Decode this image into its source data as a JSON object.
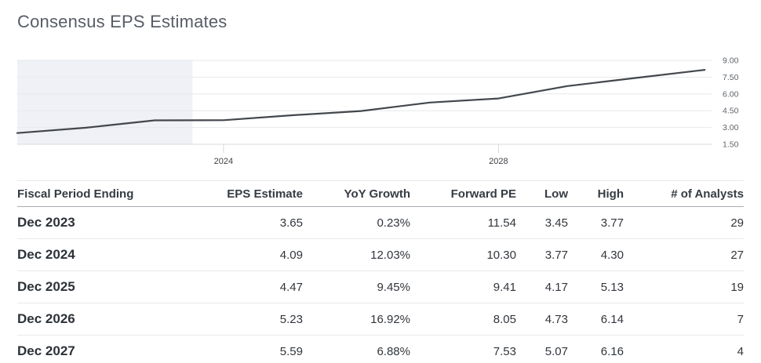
{
  "page": {
    "title": "Consensus EPS Estimates"
  },
  "chart_data": {
    "type": "line",
    "title": "Consensus EPS Estimates",
    "x": [
      2021,
      2022,
      2023,
      2024,
      2025,
      2026,
      2027,
      2028,
      2029,
      2030,
      2031
    ],
    "values": [
      2.5,
      2.98,
      3.64,
      3.65,
      4.09,
      4.47,
      5.23,
      5.59,
      6.7,
      7.43,
      8.15
    ],
    "xlabel": "",
    "ylabel": "",
    "xlim": [
      2021,
      2031.1
    ],
    "ylim": [
      1.5,
      9.0
    ],
    "y_tick_values": [
      1.5,
      3.0,
      4.5,
      6.0,
      7.5,
      9.0
    ],
    "y_tick_labels": [
      "1.50",
      "3.00",
      "4.50",
      "6.00",
      "7.50",
      "9.00"
    ],
    "y_axis_side": "right",
    "x_tick_values": [
      2024,
      2028
    ],
    "x_tick_labels": [
      "2024",
      "2028"
    ],
    "grid": true,
    "legend": "none",
    "shaded_region": {
      "x_start": 2021,
      "x_end": 2023.55
    },
    "colors": {
      "line": "#43474c",
      "grid": "#e7e8ea",
      "axis": "#d7d9dc",
      "shade": "#eff1f6",
      "y_tick_label": "#5f6469",
      "x_tick_label": "#3d4146"
    }
  },
  "table": {
    "columns": [
      {
        "label": "Fiscal Period Ending",
        "align": "left"
      },
      {
        "label": "EPS Estimate",
        "align": "right"
      },
      {
        "label": "YoY Growth",
        "align": "right"
      },
      {
        "label": "Forward PE",
        "align": "right"
      },
      {
        "label": "Low",
        "align": "right"
      },
      {
        "label": "High",
        "align": "right"
      },
      {
        "label": "# of Analysts",
        "align": "right"
      }
    ],
    "rows": [
      [
        "Dec 2023",
        "3.65",
        "0.23%",
        "11.54",
        "3.45",
        "3.77",
        "29"
      ],
      [
        "Dec 2024",
        "4.09",
        "12.03%",
        "10.30",
        "3.77",
        "4.30",
        "27"
      ],
      [
        "Dec 2025",
        "4.47",
        "9.45%",
        "9.41",
        "4.17",
        "5.13",
        "19"
      ],
      [
        "Dec 2026",
        "5.23",
        "16.92%",
        "8.05",
        "4.73",
        "6.14",
        "7"
      ],
      [
        "Dec 2027",
        "5.59",
        "6.88%",
        "7.53",
        "5.07",
        "6.16",
        "4"
      ]
    ]
  }
}
